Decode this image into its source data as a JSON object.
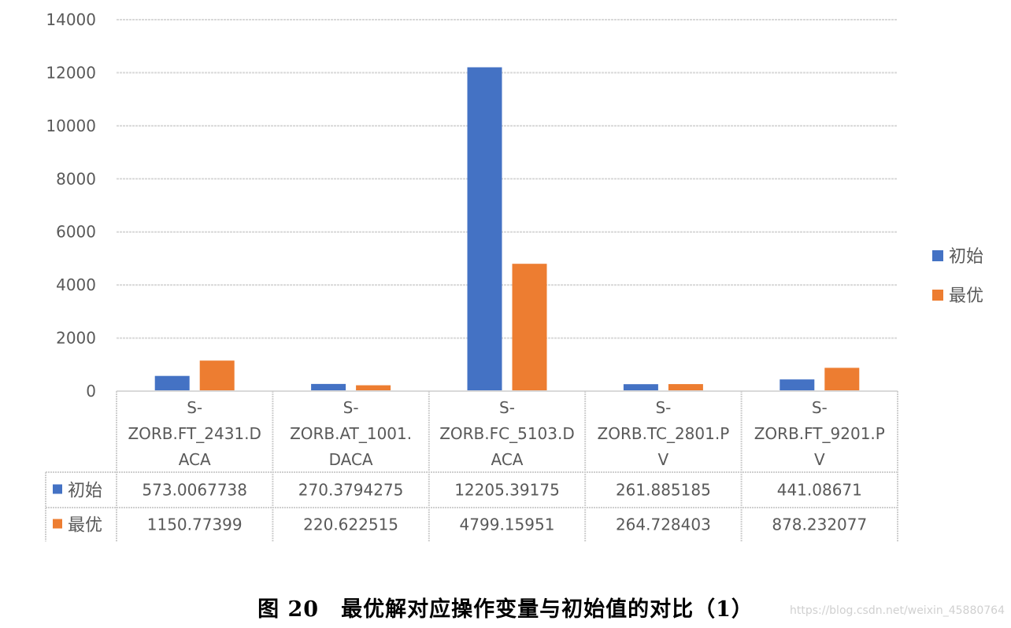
{
  "chart_data": {
    "type": "bar",
    "categories": [
      [
        "S-",
        "ZORB.FT_2431.D",
        "ACA"
      ],
      [
        "S-",
        "ZORB.AT_1001.",
        "DACA"
      ],
      [
        "S-",
        "ZORB.FC_5103.D",
        "ACA"
      ],
      [
        "S-",
        "ZORB.TC_2801.P",
        "V"
      ],
      [
        "S-",
        "ZORB.FT_9201.P",
        "V"
      ]
    ],
    "series": [
      {
        "name": "初始",
        "color": "#4472C4",
        "values": [
          573.0067738,
          270.3794275,
          12205.39175,
          261.885185,
          441.08671
        ],
        "labels": [
          "573.0067738",
          "270.3794275",
          "12205.39175",
          "261.885185",
          "441.08671"
        ]
      },
      {
        "name": "最优",
        "color": "#ED7D31",
        "values": [
          1150.77399,
          220.622515,
          4799.15951,
          264.728403,
          878.232077
        ],
        "labels": [
          "1150.77399",
          "220.622515",
          "4799.15951",
          "264.728403",
          "878.232077"
        ]
      }
    ],
    "ylim": [
      0,
      14000
    ],
    "yticks": [
      "0",
      "2000",
      "4000",
      "6000",
      "8000",
      "10000",
      "12000",
      "14000"
    ],
    "ytick_values": [
      0,
      2000,
      4000,
      6000,
      8000,
      10000,
      12000,
      14000
    ],
    "grid": true,
    "legend": "right",
    "data_table": true
  },
  "caption": "图 20　最优解对应操作变量与初始值的对比（1）",
  "watermark": "https://blog.csdn.net/weixin_45880764"
}
